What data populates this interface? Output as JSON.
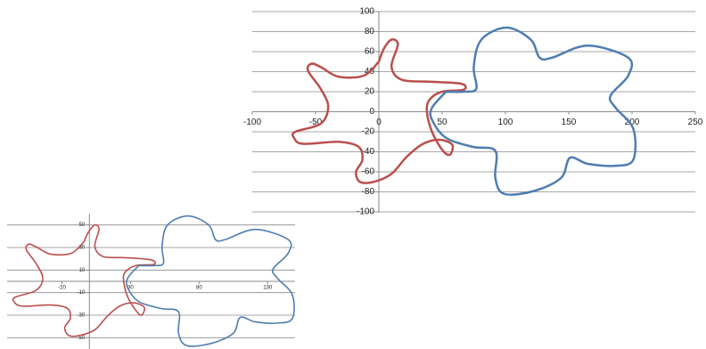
{
  "chart_data": [
    {
      "type": "line",
      "xlim": [
        -100,
        250
      ],
      "ylim": [
        -100,
        100
      ],
      "xticks": [
        -100,
        -50,
        0,
        50,
        100,
        150,
        200,
        250
      ],
      "yticks": [
        -100,
        -80,
        -60,
        -40,
        -20,
        0,
        20,
        40,
        60,
        80,
        100
      ],
      "grid": true,
      "series": [
        {
          "color": "#b9504d",
          "x": [
            0,
            4,
            10,
            15,
            10,
            18,
            40,
            65,
            67,
            50,
            40,
            38,
            42,
            50,
            56,
            58,
            48,
            35,
            22,
            10,
            -4,
            -15,
            -18,
            -13,
            -16,
            -32,
            -60,
            -67,
            -66,
            -46,
            -40,
            -46,
            -56,
            -53,
            -45,
            -32,
            -12,
            0
          ],
          "values": [
            50,
            63,
            72,
            67,
            45,
            32,
            30,
            28,
            22,
            20,
            12,
            0,
            -20,
            -38,
            -43,
            -33,
            -28,
            -32,
            -45,
            -62,
            -70,
            -70,
            -60,
            -48,
            -35,
            -30,
            -32,
            -26,
            -20,
            -12,
            5,
            23,
            41,
            48,
            44,
            35,
            36,
            50
          ]
        },
        {
          "color": "#4f7eb0",
          "x": [
            53,
            67,
            77,
            75,
            81,
            101,
            120,
            127,
            137,
            165,
            197,
            197,
            183,
            187,
            201,
            201,
            187,
            165,
            151,
            144,
            123,
            99,
            92,
            92,
            74,
            53,
            42,
            42,
            53
          ],
          "values": [
            20,
            20,
            23,
            45,
            72,
            84,
            72,
            54,
            54,
            66,
            54,
            36,
            16,
            4,
            -17,
            -48,
            -54,
            -52,
            -46,
            -66,
            -79,
            -82,
            -66,
            -39,
            -35,
            -26,
            -8,
            4,
            20
          ]
        }
      ]
    },
    {
      "type": "line",
      "xlim": [
        -60,
        150
      ],
      "ylim": [
        -60,
        60
      ],
      "xticks": [
        -20,
        30,
        80,
        130
      ],
      "yticks": [
        50,
        30,
        10,
        -10,
        -30,
        -50
      ],
      "grid": true,
      "series": [
        {
          "color": "#b9504d",
          "x": [
            -4,
            -1,
            4,
            7,
            4,
            10,
            26,
            45,
            47,
            34,
            26,
            25,
            28,
            34,
            38,
            40,
            32,
            22,
            13,
            4,
            -7,
            -15,
            -18,
            -14,
            -16,
            -28,
            -49,
            -55,
            -54,
            -39,
            -34,
            -39,
            -46,
            -44,
            -38,
            -28,
            -13,
            -4
          ],
          "values": [
            35,
            43,
            50,
            46,
            31,
            22,
            21,
            19,
            15,
            14,
            8,
            0,
            -14,
            -26,
            -30,
            -23,
            -19,
            -22,
            -31,
            -43,
            -48,
            -48,
            -41,
            -33,
            -24,
            -21,
            -22,
            -18,
            -14,
            -8,
            3,
            16,
            28,
            33,
            30,
            24,
            25,
            35
          ]
        },
        {
          "color": "#4f7eb0",
          "x": [
            36,
            47,
            54,
            53,
            57,
            72,
            87,
            92,
            99,
            121,
            145,
            145,
            134,
            137,
            148,
            148,
            137,
            121,
            110,
            105,
            89,
            71,
            65,
            65,
            52,
            36,
            28,
            28,
            36
          ],
          "values": [
            14,
            14,
            16,
            31,
            50,
            58,
            50,
            37,
            37,
            46,
            37,
            25,
            11,
            3,
            -12,
            -33,
            -37,
            -36,
            -32,
            -46,
            -55,
            -57,
            -46,
            -27,
            -24,
            -18,
            -6,
            3,
            14
          ]
        }
      ]
    }
  ]
}
